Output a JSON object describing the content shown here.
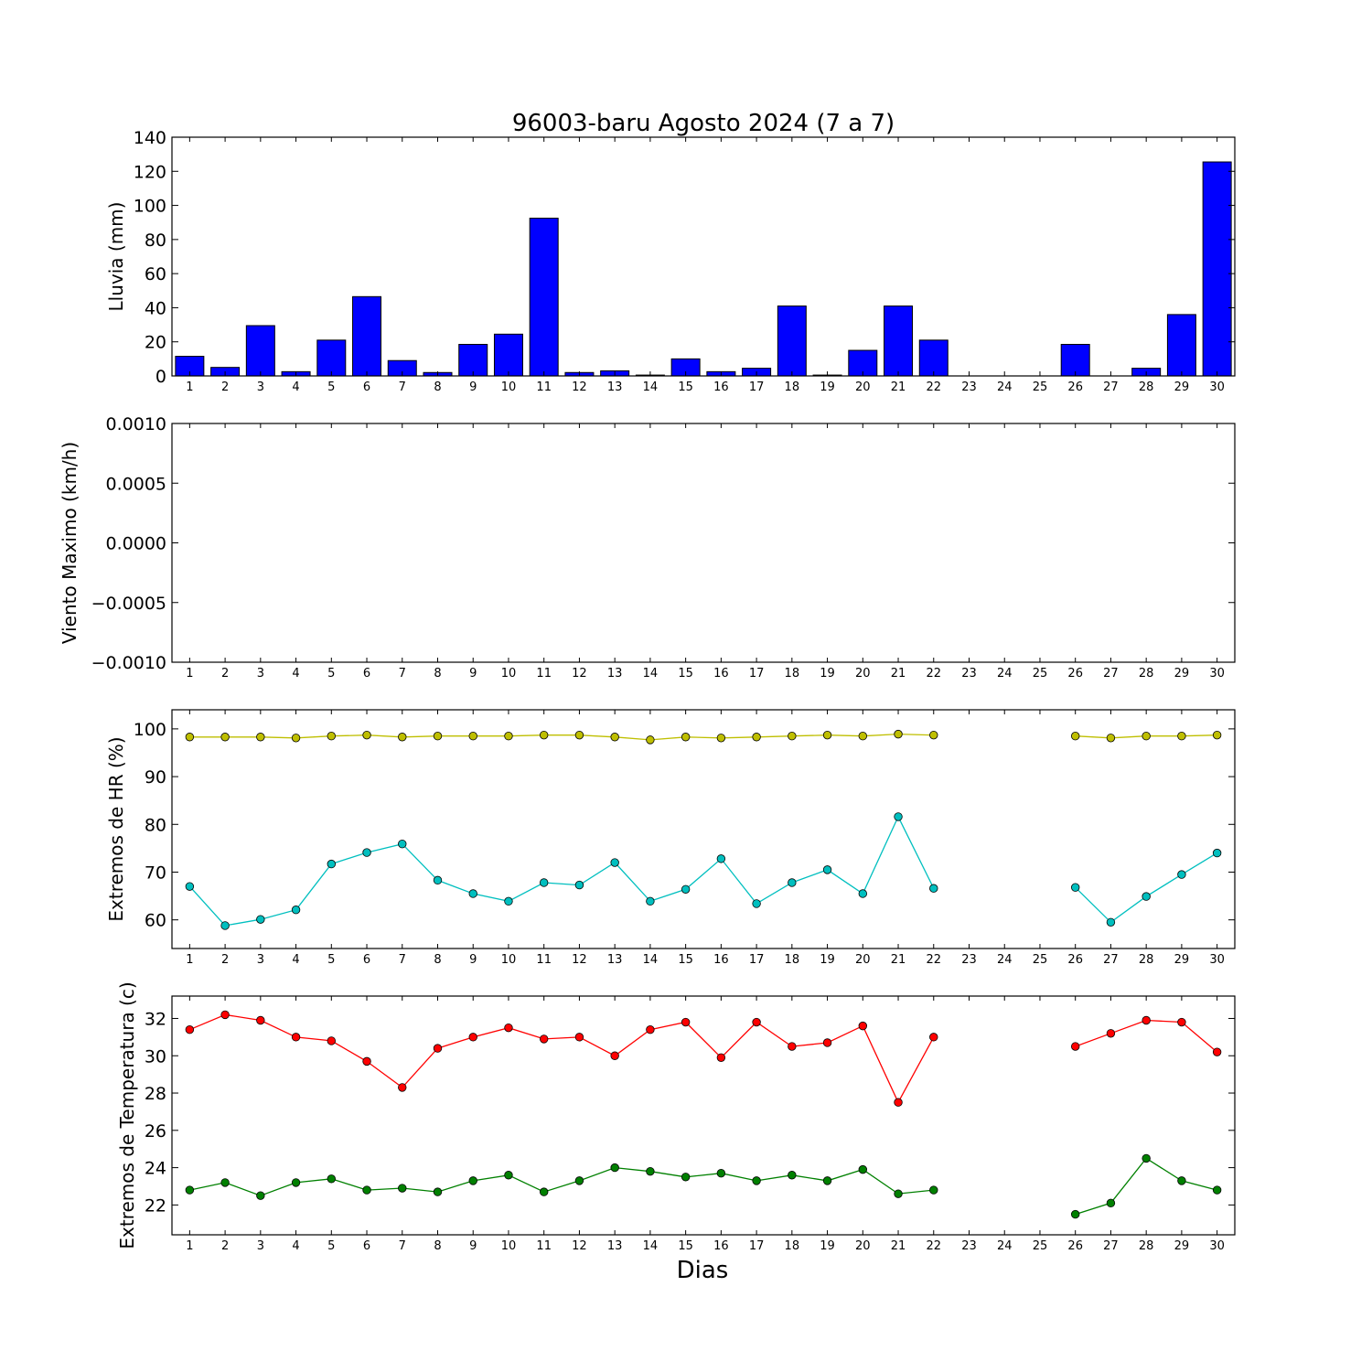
{
  "figure_title": "96003-baru Agosto 2024  (7 a 7)",
  "xlabel": "Dias",
  "chart_data": [
    {
      "type": "bar",
      "ylabel": "Lluvia (mm)",
      "ylim": [
        0,
        140
      ],
      "yticks": [
        "0",
        "20",
        "40",
        "60",
        "80",
        "100",
        "120",
        "140"
      ],
      "categories": [
        "1",
        "2",
        "3",
        "4",
        "5",
        "6",
        "7",
        "8",
        "9",
        "10",
        "11",
        "12",
        "13",
        "14",
        "15",
        "16",
        "17",
        "18",
        "19",
        "20",
        "21",
        "22",
        "23",
        "24",
        "25",
        "26",
        "27",
        "28",
        "29",
        "30"
      ],
      "series": [
        {
          "color": "#0000ff",
          "values": [
            11.5,
            5.0,
            29.5,
            2.5,
            21.0,
            46.5,
            9.0,
            2.0,
            18.5,
            24.5,
            92.5,
            2.0,
            3.0,
            0.5,
            10.0,
            2.5,
            4.5,
            41.0,
            0.5,
            15.0,
            41.0,
            21.0,
            0,
            0,
            0,
            18.5,
            0,
            4.5,
            36.0,
            125.5
          ]
        }
      ]
    },
    {
      "type": "line",
      "ylabel": "Viento Maximo (km/h)",
      "ylim": [
        -0.001,
        0.001
      ],
      "yticks": [
        "0.0010",
        "0.0005",
        "0.0000",
        "−0.0005",
        "−0.0010"
      ],
      "categories": [
        "1",
        "2",
        "3",
        "4",
        "5",
        "6",
        "7",
        "8",
        "9",
        "10",
        "11",
        "12",
        "13",
        "14",
        "15",
        "16",
        "17",
        "18",
        "19",
        "20",
        "21",
        "22",
        "23",
        "24",
        "25",
        "26",
        "27",
        "28",
        "29",
        "30"
      ],
      "series": []
    },
    {
      "type": "line",
      "ylabel": "Extremos de HR (%)",
      "ylim": [
        54,
        104
      ],
      "yticks": [
        "60",
        "70",
        "80",
        "90",
        "100"
      ],
      "categories": [
        "1",
        "2",
        "3",
        "4",
        "5",
        "6",
        "7",
        "8",
        "9",
        "10",
        "11",
        "12",
        "13",
        "14",
        "15",
        "16",
        "17",
        "18",
        "19",
        "20",
        "21",
        "22",
        "23",
        "24",
        "25",
        "26",
        "27",
        "28",
        "29",
        "30"
      ],
      "series": [
        {
          "color": "#bfbf00",
          "values": [
            98.3,
            98.3,
            98.3,
            98.1,
            98.5,
            98.7,
            98.3,
            98.5,
            98.5,
            98.5,
            98.7,
            98.7,
            98.3,
            97.7,
            98.3,
            98.1,
            98.3,
            98.5,
            98.7,
            98.5,
            98.9,
            98.7,
            null,
            null,
            null,
            98.5,
            98.1,
            98.5,
            98.5,
            98.7
          ]
        },
        {
          "color": "#00bfbf",
          "values": [
            67.0,
            58.8,
            60.1,
            62.1,
            71.7,
            74.1,
            75.9,
            68.3,
            65.5,
            63.9,
            67.8,
            67.3,
            72.0,
            63.9,
            66.4,
            72.8,
            63.4,
            67.8,
            70.5,
            65.5,
            81.6,
            66.6,
            null,
            null,
            null,
            66.8,
            59.5,
            64.9,
            69.5,
            74.0
          ]
        }
      ]
    },
    {
      "type": "line",
      "ylabel": "Extremos de Temperatura (c)",
      "ylim": [
        20.4,
        33.2
      ],
      "yticks": [
        "22",
        "24",
        "26",
        "28",
        "30",
        "32"
      ],
      "categories": [
        "1",
        "2",
        "3",
        "4",
        "5",
        "6",
        "7",
        "8",
        "9",
        "10",
        "11",
        "12",
        "13",
        "14",
        "15",
        "16",
        "17",
        "18",
        "19",
        "20",
        "21",
        "22",
        "23",
        "24",
        "25",
        "26",
        "27",
        "28",
        "29",
        "30"
      ],
      "series": [
        {
          "color": "#ff0000",
          "values": [
            31.4,
            32.2,
            31.9,
            31.0,
            30.8,
            29.7,
            28.3,
            30.4,
            31.0,
            31.5,
            30.9,
            31.0,
            30.0,
            31.4,
            31.8,
            29.9,
            31.8,
            30.5,
            30.7,
            31.6,
            27.5,
            31.0,
            null,
            null,
            null,
            30.5,
            31.2,
            31.9,
            31.8,
            30.2
          ]
        },
        {
          "color": "#008000",
          "values": [
            22.8,
            23.2,
            22.5,
            23.2,
            23.4,
            22.8,
            22.9,
            22.7,
            23.3,
            23.6,
            22.7,
            23.3,
            24.0,
            23.8,
            23.5,
            23.7,
            23.3,
            23.6,
            23.3,
            23.9,
            22.6,
            22.8,
            null,
            null,
            null,
            21.5,
            22.1,
            24.5,
            23.3,
            22.8
          ]
        }
      ]
    }
  ]
}
